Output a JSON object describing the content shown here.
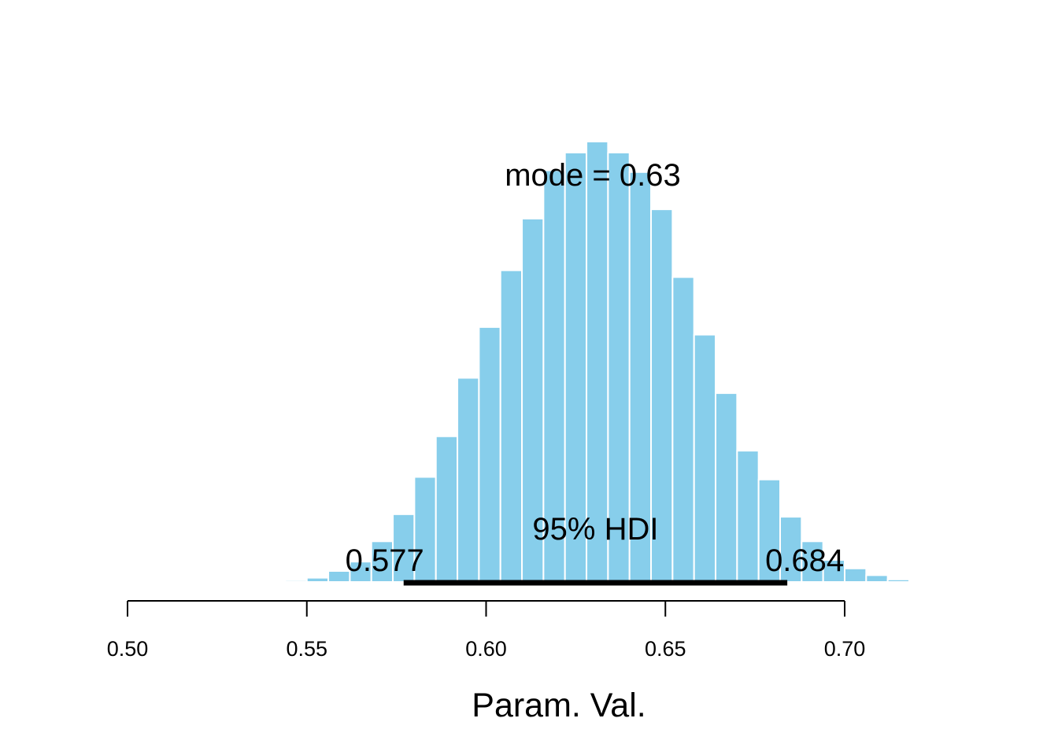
{
  "chart_data": {
    "type": "bar",
    "xlabel": "Param. Val.",
    "xlim": [
      0.5,
      0.7
    ],
    "x_ticks": [
      "0.50",
      "0.55",
      "0.60",
      "0.65",
      "0.70"
    ],
    "bin_width": 0.006,
    "bar_color": "#87ceeb",
    "bins": [
      {
        "x0": 0.544,
        "count": 2
      },
      {
        "x0": 0.55,
        "count": 5
      },
      {
        "x0": 0.556,
        "count": 13
      },
      {
        "x0": 0.562,
        "count": 24
      },
      {
        "x0": 0.568,
        "count": 48
      },
      {
        "x0": 0.574,
        "count": 80
      },
      {
        "x0": 0.58,
        "count": 124
      },
      {
        "x0": 0.586,
        "count": 172
      },
      {
        "x0": 0.592,
        "count": 241
      },
      {
        "x0": 0.598,
        "count": 301
      },
      {
        "x0": 0.604,
        "count": 368
      },
      {
        "x0": 0.61,
        "count": 429
      },
      {
        "x0": 0.616,
        "count": 486
      },
      {
        "x0": 0.622,
        "count": 507
      },
      {
        "x0": 0.628,
        "count": 520
      },
      {
        "x0": 0.634,
        "count": 507
      },
      {
        "x0": 0.64,
        "count": 484
      },
      {
        "x0": 0.646,
        "count": 440
      },
      {
        "x0": 0.652,
        "count": 360
      },
      {
        "x0": 0.658,
        "count": 292
      },
      {
        "x0": 0.664,
        "count": 223
      },
      {
        "x0": 0.67,
        "count": 155
      },
      {
        "x0": 0.676,
        "count": 121
      },
      {
        "x0": 0.682,
        "count": 77
      },
      {
        "x0": 0.688,
        "count": 48
      },
      {
        "x0": 0.694,
        "count": 26
      },
      {
        "x0": 0.7,
        "count": 16
      },
      {
        "x0": 0.706,
        "count": 8
      },
      {
        "x0": 0.712,
        "count": 3
      },
      {
        "x0": 0.718,
        "count": 1
      }
    ],
    "mode": {
      "label": "mode",
      "value": "0.63"
    },
    "hdi": {
      "label": "95% HDI",
      "low": 0.577,
      "high": 0.684,
      "low_label": "0.577",
      "high_label": "0.684"
    }
  }
}
